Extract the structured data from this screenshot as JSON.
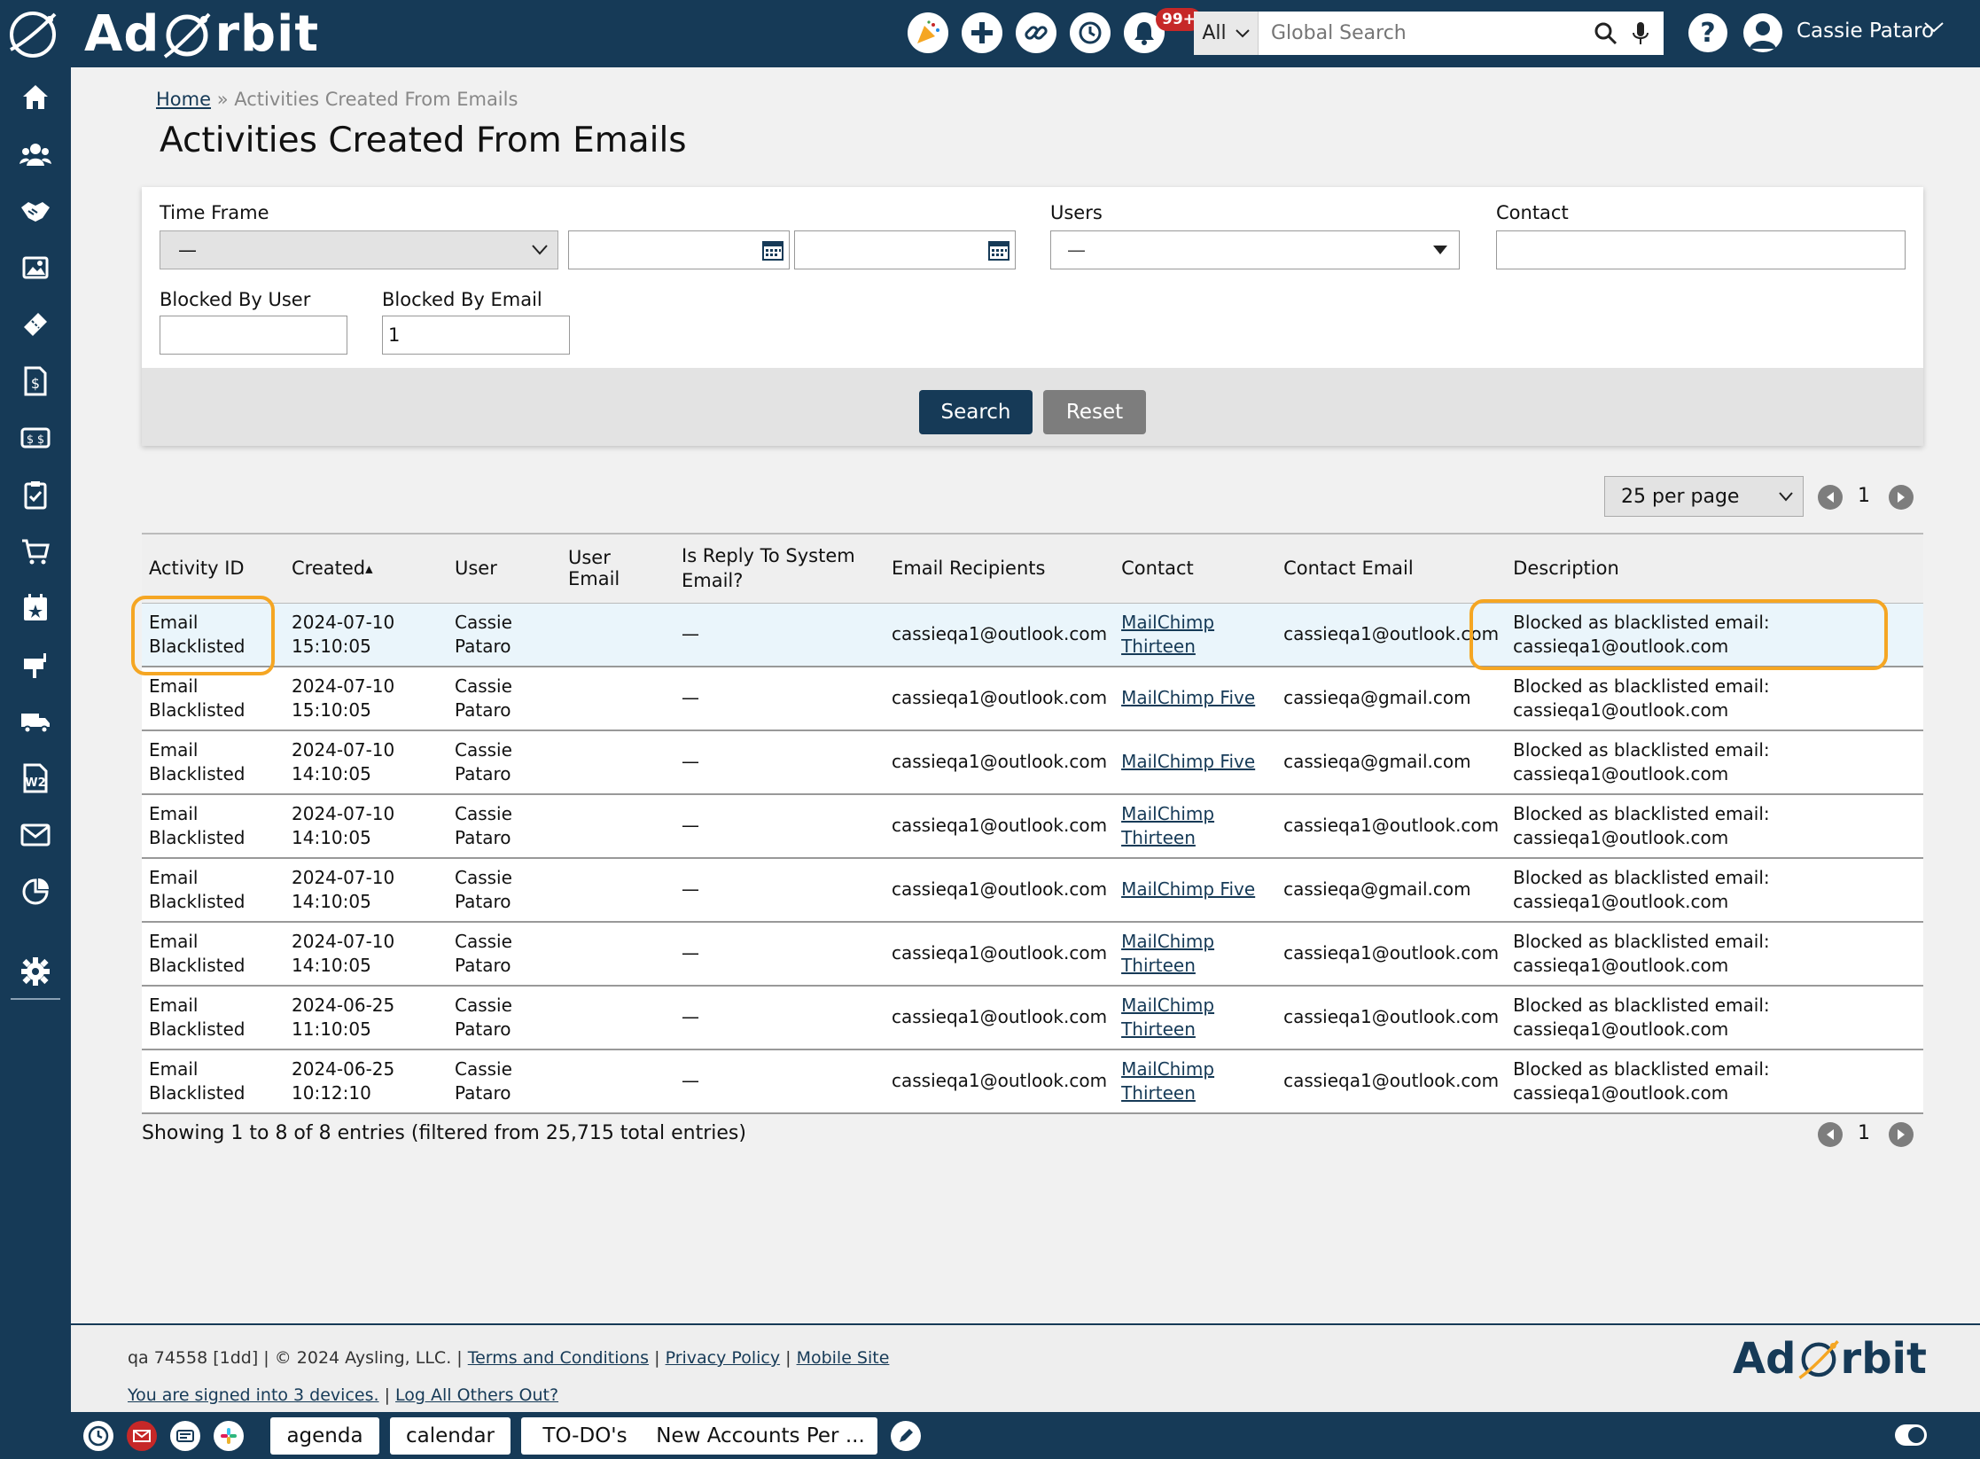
{
  "app": {
    "logo_text_left": "Ad",
    "logo_text_right": "rbit"
  },
  "topbar": {
    "notification_count": "99+",
    "search_scope": "All",
    "search_placeholder": "Global Search",
    "user_name": "Cassie Pataro",
    "icons": [
      "party-icon",
      "plus-icon",
      "link-icon",
      "history-icon",
      "bell-icon",
      "search-icon",
      "microphone-icon",
      "help-icon",
      "user-avatar-icon"
    ]
  },
  "sidebar": {
    "icons": [
      "home-icon",
      "people-icon",
      "handshake-icon",
      "media-icon",
      "ticket-icon",
      "invoice-icon",
      "money-icon",
      "clipboard-check-icon",
      "cart-icon",
      "calendar-star-icon",
      "mailbox-icon",
      "truck-icon",
      "w2-icon",
      "mail-icon",
      "chart-icon",
      "gear-icon"
    ]
  },
  "breadcrumb": {
    "home": "Home",
    "separator": "»",
    "current": "Activities Created From Emails"
  },
  "page_title": "Activities Created From Emails",
  "filters": {
    "time_frame_label": "Time Frame",
    "time_frame_value": "—",
    "users_label": "Users",
    "users_value": "—",
    "contact_label": "Contact",
    "contact_value": "",
    "blocked_by_user_label": "Blocked By User",
    "blocked_by_user_value": "",
    "blocked_by_email_label": "Blocked By Email",
    "blocked_by_email_value": "1",
    "search_button": "Search",
    "reset_button": "Reset"
  },
  "pagination": {
    "per_page": "25 per page",
    "page": "1"
  },
  "table": {
    "columns": [
      "Activity ID",
      "Created",
      "User",
      "User Email",
      "Is Reply To System Email?",
      "Email Recipients",
      "Contact",
      "Contact Email",
      "Description"
    ],
    "rows": [
      {
        "activity_id": "Email Blacklisted",
        "created": "2024-07-10 15:10:05",
        "user": "Cassie Pataro",
        "user_email": "",
        "is_reply": "—",
        "recipients": "cassieqa1@outlook.com",
        "contact": "MailChimp Thirteen",
        "contact_email": "cassieqa1@outlook.com",
        "description": "Blocked as blacklisted email: cassieqa1@outlook.com"
      },
      {
        "activity_id": "Email Blacklisted",
        "created": "2024-07-10 15:10:05",
        "user": "Cassie Pataro",
        "user_email": "",
        "is_reply": "—",
        "recipients": "cassieqa1@outlook.com",
        "contact": "MailChimp Five",
        "contact_email": "cassieqa@gmail.com",
        "description": "Blocked as blacklisted email: cassieqa1@outlook.com"
      },
      {
        "activity_id": "Email Blacklisted",
        "created": "2024-07-10 14:10:05",
        "user": "Cassie Pataro",
        "user_email": "",
        "is_reply": "—",
        "recipients": "cassieqa1@outlook.com",
        "contact": "MailChimp Five",
        "contact_email": "cassieqa@gmail.com",
        "description": "Blocked as blacklisted email: cassieqa1@outlook.com"
      },
      {
        "activity_id": "Email Blacklisted",
        "created": "2024-07-10 14:10:05",
        "user": "Cassie Pataro",
        "user_email": "",
        "is_reply": "—",
        "recipients": "cassieqa1@outlook.com",
        "contact": "MailChimp Thirteen",
        "contact_email": "cassieqa1@outlook.com",
        "description": "Blocked as blacklisted email: cassieqa1@outlook.com"
      },
      {
        "activity_id": "Email Blacklisted",
        "created": "2024-07-10 14:10:05",
        "user": "Cassie Pataro",
        "user_email": "",
        "is_reply": "—",
        "recipients": "cassieqa1@outlook.com",
        "contact": "MailChimp Five",
        "contact_email": "cassieqa@gmail.com",
        "description": "Blocked as blacklisted email: cassieqa1@outlook.com"
      },
      {
        "activity_id": "Email Blacklisted",
        "created": "2024-07-10 14:10:05",
        "user": "Cassie Pataro",
        "user_email": "",
        "is_reply": "—",
        "recipients": "cassieqa1@outlook.com",
        "contact": "MailChimp Thirteen",
        "contact_email": "cassieqa1@outlook.com",
        "description": "Blocked as blacklisted email: cassieqa1@outlook.com"
      },
      {
        "activity_id": "Email Blacklisted",
        "created": "2024-06-25 11:10:05",
        "user": "Cassie Pataro",
        "user_email": "",
        "is_reply": "—",
        "recipients": "cassieqa1@outlook.com",
        "contact": "MailChimp Thirteen",
        "contact_email": "cassieqa1@outlook.com",
        "description": "Blocked as blacklisted email: cassieqa1@outlook.com"
      },
      {
        "activity_id": "Email Blacklisted",
        "created": "2024-06-25 10:12:10",
        "user": "Cassie Pataro",
        "user_email": "",
        "is_reply": "—",
        "recipients": "cassieqa1@outlook.com",
        "contact": "MailChimp Thirteen",
        "contact_email": "cassieqa1@outlook.com",
        "description": "Blocked as blacklisted email: cassieqa1@outlook.com"
      }
    ]
  },
  "showing_text": "Showing 1 to 8 of 8 entries (filtered from 25,715 total entries)",
  "footer": {
    "version": "qa 74558 [1dd] | © 2024 Aysling, LLC. |",
    "terms": "Terms and Conditions",
    "privacy": "Privacy Policy",
    "mobile": "Mobile Site",
    "signed_in": "You are signed into 3 devices.",
    "log_out_others": "Log All Others Out?",
    "sep": "|"
  },
  "bottombar": {
    "tabs": [
      "agenda",
      "calendar",
      "TO-DO's",
      "New Accounts Per ..."
    ]
  },
  "colors": {
    "brand": "#163a57",
    "highlight": "#f5a623",
    "selected_row": "#eaf5fb"
  }
}
